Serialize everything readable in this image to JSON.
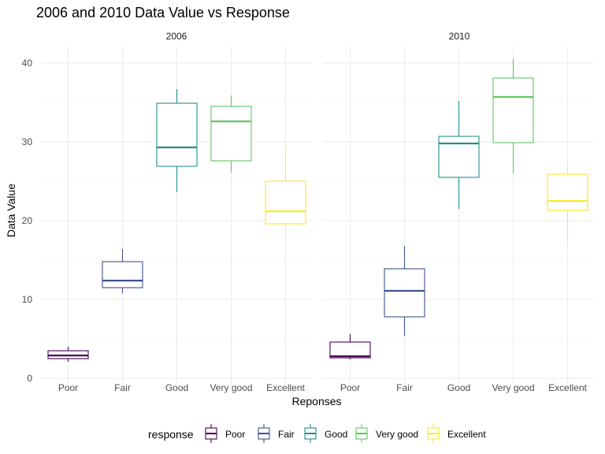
{
  "chart_data": {
    "type": "boxplot",
    "title": "2006 and 2010 Data Value vs Response",
    "xlabel": "Reponses",
    "ylabel": "Data Value",
    "ylim": [
      0,
      40
    ],
    "yticks": [
      "0",
      "10",
      "20",
      "30",
      "40"
    ],
    "categories": [
      "Poor",
      "Fair",
      "Good",
      "Very good",
      "Excellent"
    ],
    "legend": {
      "title": "response",
      "position": "bottom",
      "entries": [
        "Poor",
        "Fair",
        "Good",
        "Very good",
        "Excellent"
      ]
    },
    "grid": true,
    "colors": {
      "Poor": "#440154",
      "Fair": "#3b528b",
      "Good": "#21908c",
      "Very good": "#5dc863",
      "Excellent": "#fde725"
    },
    "panels": [
      {
        "label": "2006",
        "boxes": [
          {
            "category": "Poor",
            "min": 2.1,
            "q1": 2.5,
            "median": 2.9,
            "q3": 3.5,
            "max": 4.0
          },
          {
            "category": "Fair",
            "min": 10.8,
            "q1": 11.5,
            "median": 12.4,
            "q3": 14.8,
            "max": 16.4
          },
          {
            "category": "Good",
            "min": 23.6,
            "q1": 26.9,
            "median": 29.3,
            "q3": 34.9,
            "max": 36.7
          },
          {
            "category": "Very good",
            "min": 26.1,
            "q1": 27.6,
            "median": 32.6,
            "q3": 34.5,
            "max": 35.9
          },
          {
            "category": "Excellent",
            "min": 19.5,
            "q1": 19.6,
            "median": 21.2,
            "q3": 25.0,
            "max": 29.0
          }
        ]
      },
      {
        "label": "2010",
        "boxes": [
          {
            "category": "Poor",
            "min": 2.4,
            "q1": 2.6,
            "median": 2.8,
            "q3": 4.6,
            "max": 5.6
          },
          {
            "category": "Fair",
            "min": 5.4,
            "q1": 7.8,
            "median": 11.1,
            "q3": 13.9,
            "max": 16.8
          },
          {
            "category": "Good",
            "min": 21.5,
            "q1": 25.5,
            "median": 29.8,
            "q3": 30.7,
            "max": 35.2
          },
          {
            "category": "Very good",
            "min": 26.0,
            "q1": 29.9,
            "median": 35.7,
            "q3": 38.1,
            "max": 40.5
          },
          {
            "category": "Excellent",
            "min": 17.3,
            "q1": 21.3,
            "median": 22.5,
            "q3": 25.9,
            "max": 26.8
          }
        ]
      }
    ]
  }
}
